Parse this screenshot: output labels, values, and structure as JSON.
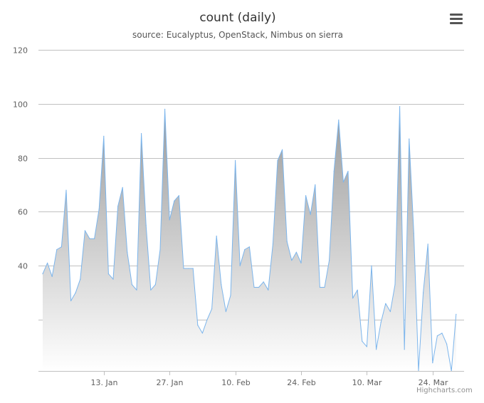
{
  "chart": {
    "title": "count (daily)",
    "subtitle": "source: Eucalyptus, OpenStack, Nimbus on sierra",
    "credits": "Highcharts.com",
    "menu_icon": "hamburger-menu-icon"
  },
  "colors": {
    "line": "#7cb5ec",
    "area_top": "#999999",
    "area_bottom": "#ffffff",
    "grid": "#c0c0c0",
    "axis_label": "#606060"
  },
  "chart_data": {
    "type": "area",
    "title": "count (daily)",
    "subtitle": "source: Eucalyptus, OpenStack, Nimbus on sierra",
    "xlabel": "",
    "ylabel": "",
    "x_start": "2013-12-31",
    "x_interval_days": 1,
    "x_ticks": [
      {
        "date": "2014-01-13",
        "label": "13. Jan"
      },
      {
        "date": "2014-01-27",
        "label": "27. Jan"
      },
      {
        "date": "2014-02-10",
        "label": "10. Feb"
      },
      {
        "date": "2014-02-24",
        "label": "24. Feb"
      },
      {
        "date": "2014-03-10",
        "label": "10. Mar"
      },
      {
        "date": "2014-03-24",
        "label": "24. Mar"
      }
    ],
    "y_ticks": [
      20,
      40,
      60,
      80,
      100,
      120
    ],
    "y_tick_labels": [
      "",
      "40",
      "60",
      "80",
      "100",
      "120"
    ],
    "ylim": [
      1,
      120
    ],
    "grid": true,
    "legend": "none",
    "series": [
      {
        "values": [
          37,
          41,
          36,
          46,
          47,
          68,
          27,
          30,
          35,
          53,
          50,
          50,
          61,
          88,
          37,
          35,
          62,
          69,
          45,
          33,
          31,
          89,
          55,
          31,
          33,
          46,
          98,
          57,
          64,
          66,
          39,
          39,
          39,
          18,
          15,
          20,
          24,
          51,
          33,
          23,
          29,
          79,
          40,
          46,
          47,
          32,
          32,
          34,
          31,
          48,
          79,
          83,
          49,
          42,
          45,
          41,
          66,
          59,
          70,
          32,
          32,
          42,
          75,
          94,
          71,
          75,
          28,
          31,
          12,
          10,
          40,
          9,
          19,
          26,
          23,
          33,
          99,
          9,
          87,
          52,
          1,
          30,
          48,
          4,
          14,
          15,
          11,
          1,
          22
        ]
      }
    ]
  }
}
